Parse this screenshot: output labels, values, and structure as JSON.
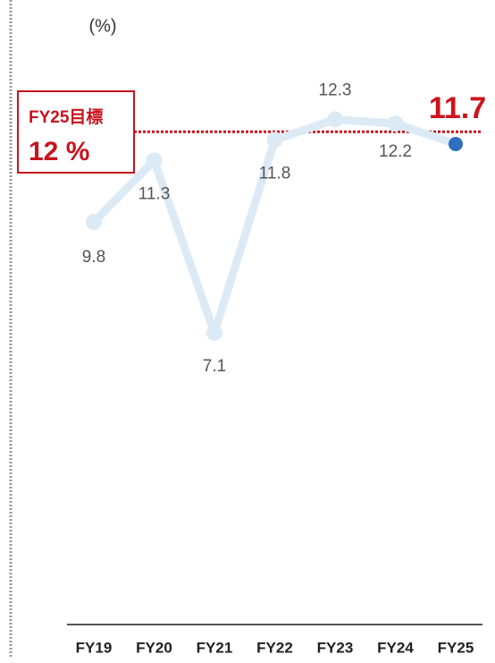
{
  "chart_data": {
    "type": "line",
    "unit": "(%)",
    "categories": [
      "FY19",
      "FY20",
      "FY21",
      "FY22",
      "FY23",
      "FY24",
      "FY25"
    ],
    "series": [
      {
        "values": [
          9.8,
          11.3,
          7.1,
          11.8,
          12.3,
          12.2,
          11.7
        ],
        "color": "#dceaf6",
        "highlight_color": "#2f6fc0",
        "highlight_label_color": "#d0121b"
      }
    ],
    "target": {
      "name": "FY25目標",
      "value": 12,
      "label": "12 %",
      "color": "#c8141e"
    },
    "ylim": [
      0,
      14
    ]
  }
}
